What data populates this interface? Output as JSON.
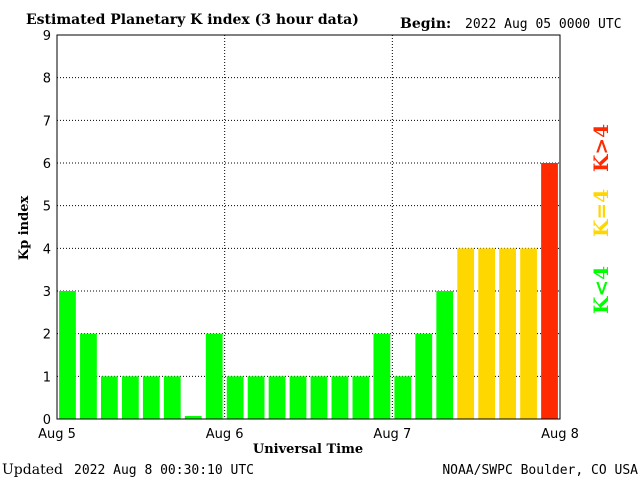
{
  "header": {
    "title": "Estimated Planetary K index (3 hour data)",
    "begin_label": "Begin:",
    "begin_value": "2022 Aug 05 0000 UTC"
  },
  "footer": {
    "updated_label": "Updated",
    "updated_value": "2022 Aug  8 00:30:10 UTC",
    "source": "NOAA/SWPC Boulder, CO USA"
  },
  "legend": [
    {
      "label": "K<4",
      "color": "#00ff00"
    },
    {
      "label": "K=4",
      "color": "#ffd700"
    },
    {
      "label": "K>4",
      "color": "#ff2a00"
    }
  ],
  "chart_data": {
    "type": "bar",
    "xlabel": "Universal Time",
    "ylabel": "Kp index",
    "ylim": [
      0,
      9
    ],
    "yticks": [
      "0",
      "1",
      "2",
      "3",
      "4",
      "5",
      "6",
      "7",
      "8",
      "9"
    ],
    "xticks": [
      "Aug 5",
      "Aug 6",
      "Aug 7",
      "Aug 8"
    ],
    "grid": "dotted",
    "values": [
      3,
      2,
      1,
      1,
      1,
      1,
      0.07,
      2,
      1,
      1,
      1,
      1,
      1,
      1,
      1,
      2,
      1,
      2,
      3,
      4,
      4,
      4,
      4,
      6
    ],
    "colors": {
      "low": "#00ff00",
      "equal": "#ffd700",
      "high": "#ff2a00"
    }
  }
}
